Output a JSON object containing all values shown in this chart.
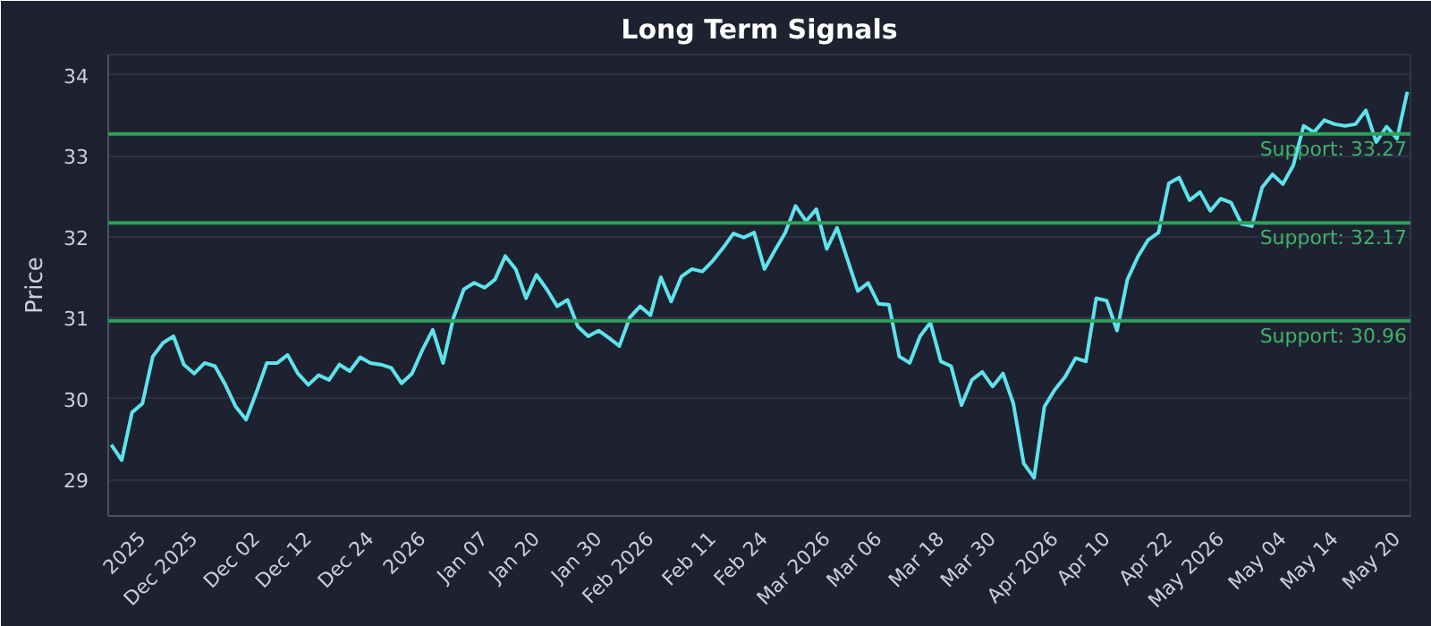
{
  "chart_data": {
    "type": "line",
    "title": "Long Term Signals",
    "ylabel": "Price",
    "categories": [
      null,
      null,
      null,
      "2025",
      null,
      null,
      null,
      null,
      "Dec 2025",
      null,
      null,
      null,
      null,
      null,
      "Dec 02",
      null,
      null,
      null,
      null,
      "Dec 12",
      null,
      null,
      null,
      null,
      null,
      "Dec 24",
      null,
      null,
      null,
      null,
      "2026",
      null,
      null,
      null,
      null,
      null,
      "Jan 07",
      null,
      null,
      null,
      null,
      "Jan 20",
      null,
      null,
      null,
      null,
      null,
      "Jan 30",
      null,
      null,
      null,
      null,
      "Feb 2026",
      null,
      null,
      null,
      null,
      null,
      "Feb 11",
      null,
      null,
      null,
      null,
      "Feb 24",
      null,
      null,
      null,
      null,
      null,
      "Mar 2026",
      null,
      null,
      null,
      null,
      "Mar 06",
      null,
      null,
      null,
      null,
      null,
      "Mar 18",
      null,
      null,
      null,
      null,
      "Mar 30",
      null,
      null,
      null,
      null,
      null,
      "Apr 2026",
      null,
      null,
      null,
      null,
      "Apr 10",
      null,
      null,
      null,
      null,
      null,
      "Apr 22",
      null,
      null,
      null,
      null,
      "May 2026",
      null,
      null,
      null,
      null,
      null,
      "May 04",
      null,
      null,
      null,
      null,
      "May 14",
      null,
      null,
      null,
      null,
      null,
      "May 20",
      null
    ],
    "series": [
      {
        "color": "#5ee3ec",
        "values": [
          29.43,
          29.24,
          29.83,
          29.94,
          30.52,
          30.69,
          30.77,
          30.42,
          30.31,
          30.44,
          30.4,
          30.17,
          29.9,
          29.74,
          30.08,
          30.44,
          30.44,
          30.54,
          30.31,
          30.17,
          30.29,
          30.23,
          30.42,
          30.34,
          30.51,
          30.44,
          30.42,
          30.38,
          30.19,
          30.31,
          30.6,
          30.85,
          30.44,
          31.0,
          31.35,
          31.43,
          31.37,
          31.47,
          31.76,
          31.6,
          31.24,
          31.53,
          31.35,
          31.14,
          31.22,
          30.89,
          30.77,
          30.84,
          30.75,
          30.65,
          31.0,
          31.14,
          31.03,
          31.5,
          31.2,
          31.51,
          31.6,
          31.57,
          31.7,
          31.86,
          32.04,
          31.99,
          32.05,
          31.6,
          31.83,
          32.05,
          32.38,
          32.19,
          32.34,
          31.85,
          32.11,
          31.72,
          31.33,
          31.43,
          31.17,
          31.16,
          30.52,
          30.44,
          30.77,
          30.94,
          30.46,
          30.4,
          29.92,
          30.23,
          30.33,
          30.15,
          30.31,
          29.94,
          29.2,
          29.02,
          29.9,
          30.11,
          30.27,
          30.5,
          30.46,
          31.24,
          31.21,
          30.84,
          31.47,
          31.75,
          31.96,
          32.05,
          32.66,
          32.73,
          32.45,
          32.55,
          32.32,
          32.47,
          32.42,
          32.16,
          32.13,
          32.61,
          32.77,
          32.65,
          32.88,
          33.37,
          33.29,
          33.44,
          33.39,
          33.37,
          33.39,
          33.56,
          33.17,
          33.36,
          33.21,
          33.79
        ]
      }
    ],
    "ylim": [
      28.55,
      34.25
    ],
    "yticks": [
      29,
      30,
      31,
      32,
      33,
      34
    ],
    "grid": "y",
    "ref_lines": [
      {
        "axis": "y",
        "value": 33.27,
        "label": "Support: 33.27",
        "color": "#2f9e5c"
      },
      {
        "axis": "y",
        "value": 32.17,
        "label": "Support: 32.17",
        "color": "#2f9e5c"
      },
      {
        "axis": "y",
        "value": 30.96,
        "label": "Support: 30.96",
        "color": "#2f9e5c"
      }
    ]
  }
}
